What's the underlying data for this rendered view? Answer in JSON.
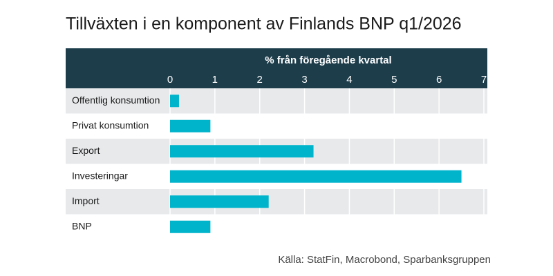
{
  "chart_data": {
    "type": "bar",
    "orientation": "horizontal",
    "title": "Tillväxten i en komponent av Finlands BNP q1/2026",
    "x_label": "% från föregående kvartal",
    "categories": [
      "Offentlig konsumtion",
      "Privat konsumtion",
      "Export",
      "Investeringar",
      "Import",
      "BNP"
    ],
    "values": [
      0.2,
      0.9,
      3.2,
      6.5,
      2.2,
      0.9
    ],
    "color": "#00b4cb",
    "xlim": [
      0,
      7
    ],
    "xticks": [
      0,
      1,
      2,
      3,
      4,
      5,
      6,
      7
    ],
    "grid": true,
    "source": "Källa: StatFin, Macrobond, Sparbanksgruppen"
  }
}
